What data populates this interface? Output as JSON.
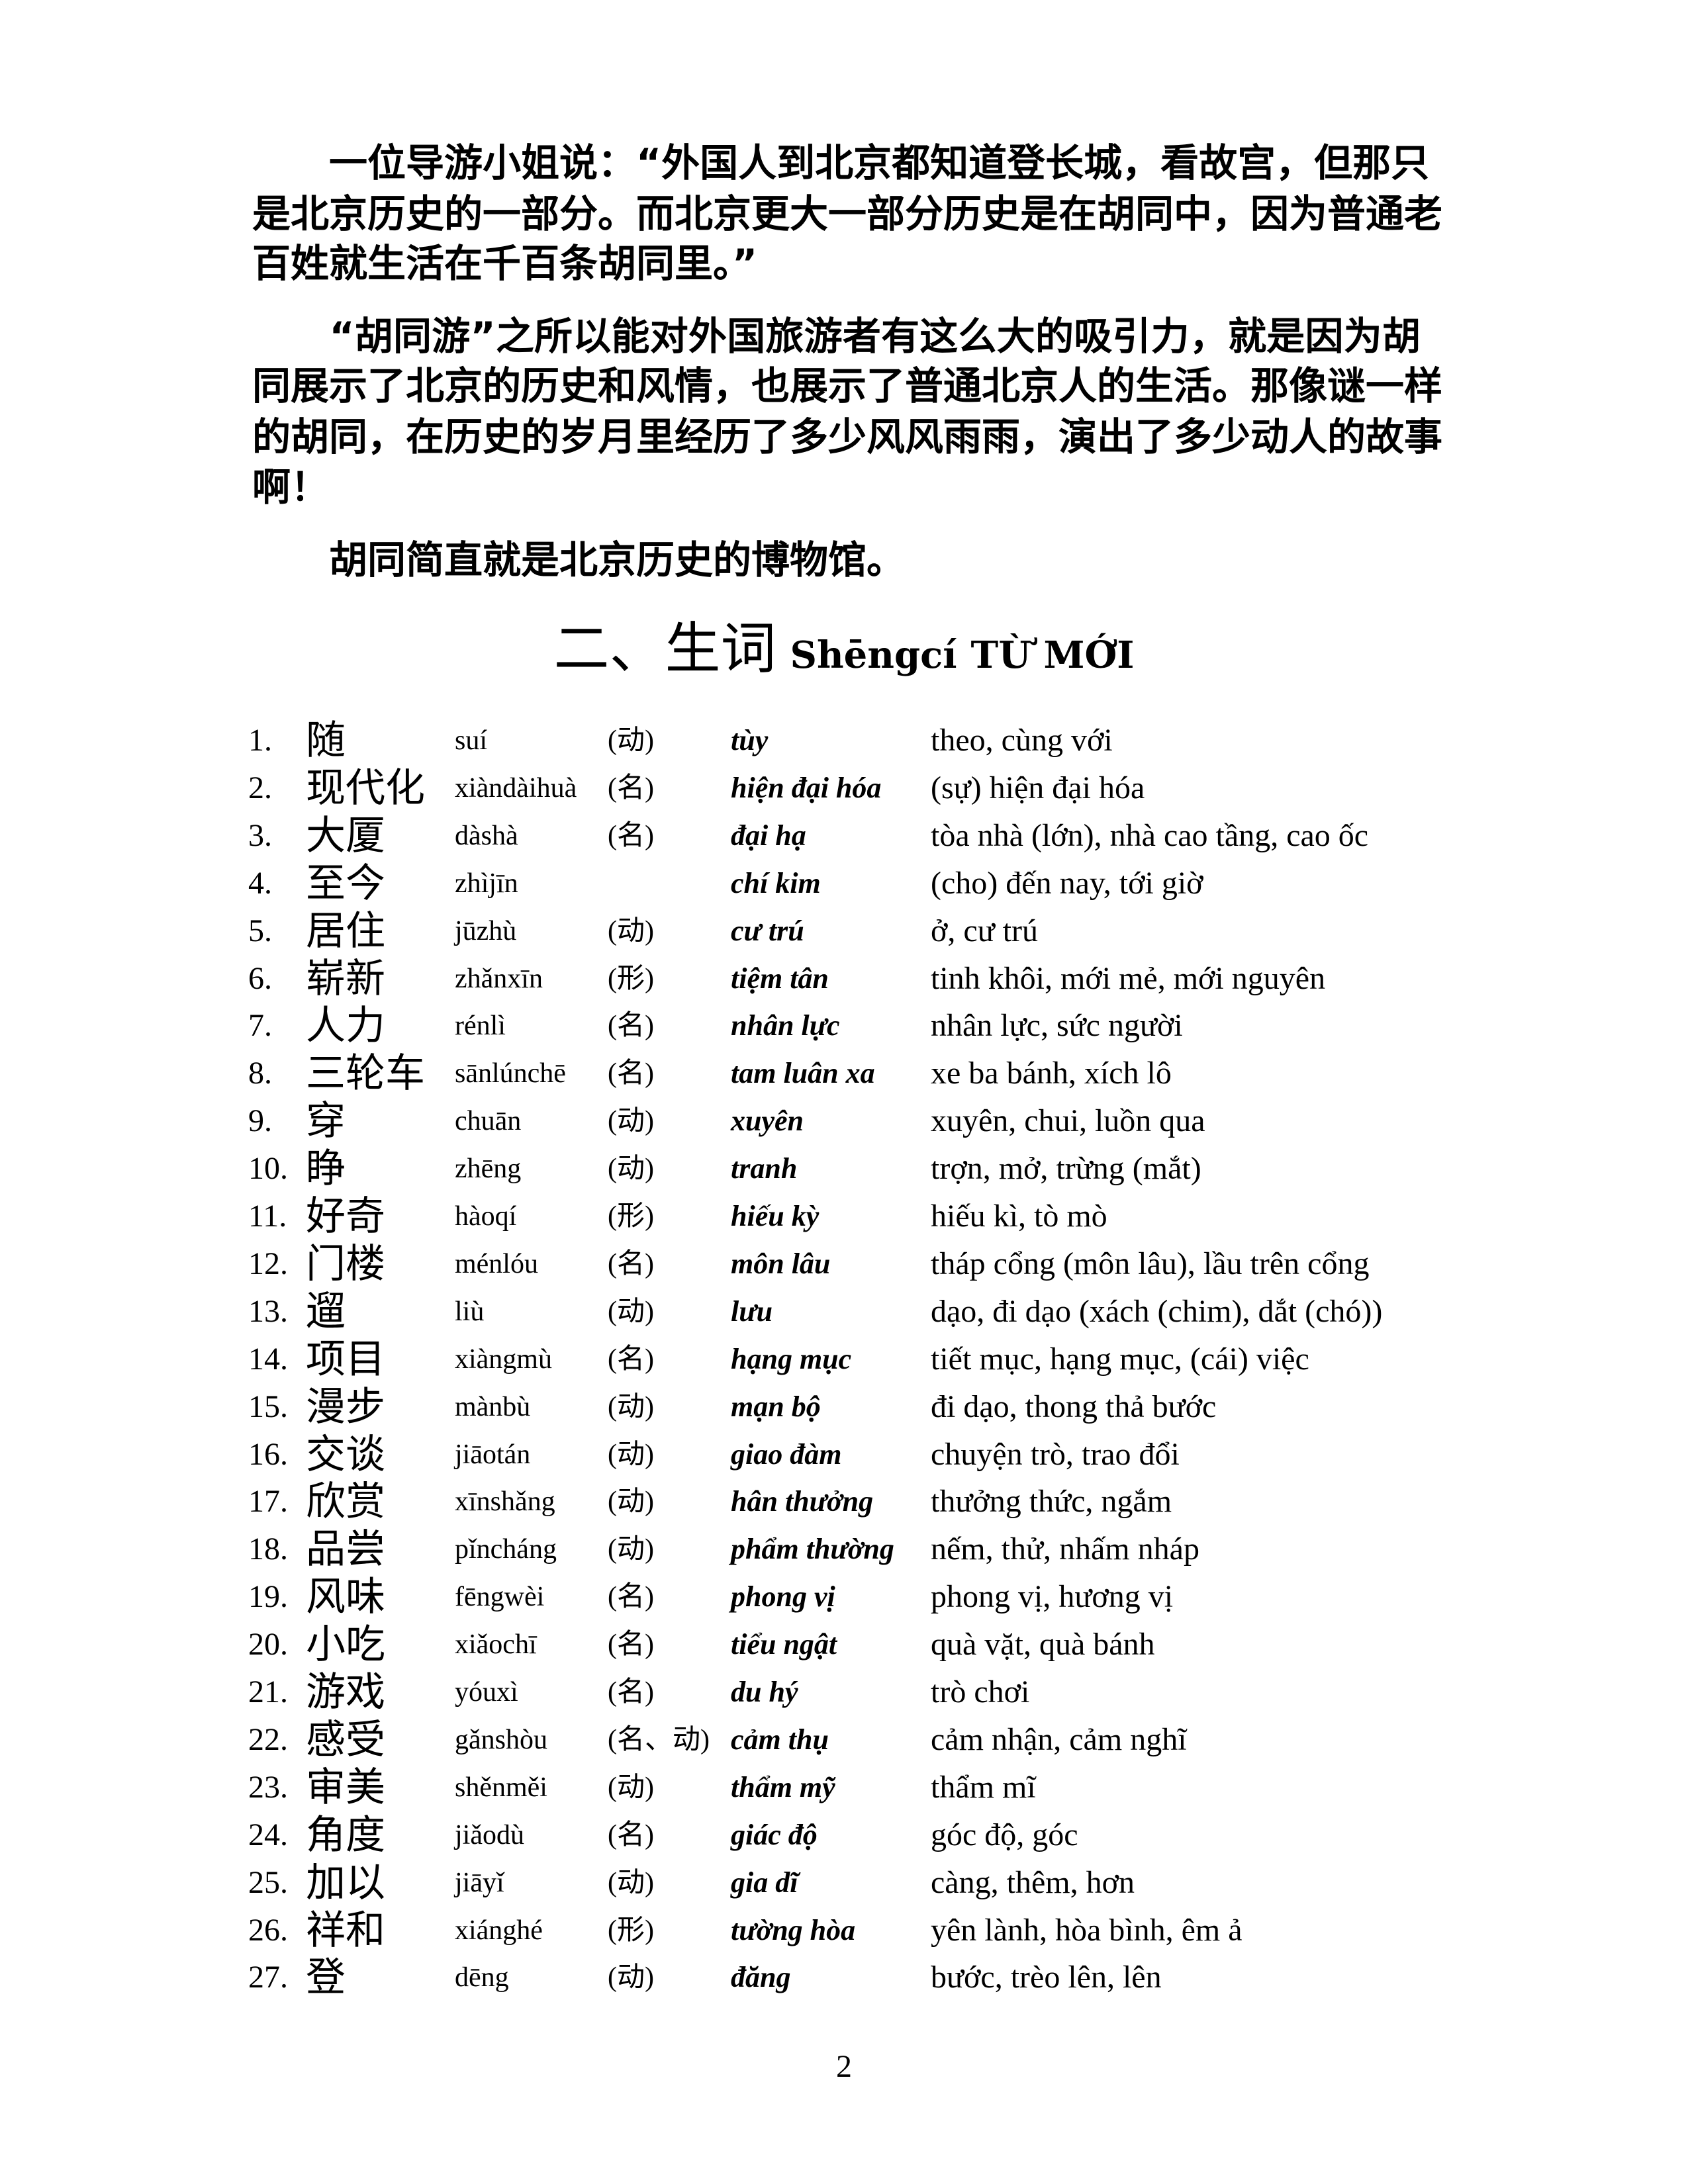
{
  "paragraphs": [
    [
      "　　一位导游小姐说：“外国人到北京都知道登长城，看故宫，但那只",
      "是北京历史的一部分。而北京更大一部分历史是在胡同中，因为普通老",
      "百姓就生活在千百条胡同里。”"
    ],
    [
      "　　“胡同游”之所以能对外国旅游者有这么大的吸引力，就是因为胡",
      "同展示了北京的历史和风情，也展示了普通北京人的生活。那像谜一样",
      "的胡同，在历史的岁月里经历了多少风风雨雨，演出了多少动人的故事",
      "啊！"
    ],
    [
      "　　胡同简直就是北京历史的博物馆。"
    ]
  ],
  "section_title": {
    "cn": "二、生词",
    "pinyin": "Shēngcí",
    "vn": "TỪ MỚI"
  },
  "vocab": [
    {
      "n": "1.",
      "hz": "随",
      "py": "suí",
      "pos": "(动)",
      "vn": "tùy",
      "mean": "theo, cùng với"
    },
    {
      "n": "2.",
      "hz": "现代化",
      "py": "xiàndàihuà",
      "pos": "(名)",
      "vn": "hiện đại hóa",
      "mean": "(sự) hiện đại hóa"
    },
    {
      "n": "3.",
      "hz": "大厦",
      "py": "dàshà",
      "pos": "(名)",
      "vn": "đại hạ",
      "mean": "tòa nhà (lớn), nhà cao tầng, cao ốc"
    },
    {
      "n": "4.",
      "hz": "至今",
      "py": "zhìjīn",
      "pos": "",
      "vn": "chí kim",
      "mean": "(cho) đến nay, tới giờ"
    },
    {
      "n": "5.",
      "hz": "居住",
      "py": "jūzhù",
      "pos": "(动)",
      "vn": "cư trú",
      "mean": "ở, cư trú"
    },
    {
      "n": "6.",
      "hz": "崭新",
      "py": "zhǎnxīn",
      "pos": "(形)",
      "vn": "tiệm tân",
      "mean": "tinh khôi, mới mẻ, mới nguyên"
    },
    {
      "n": "7.",
      "hz": "人力",
      "py": "rénlì",
      "pos": "(名)",
      "vn": "nhân lực",
      "mean": "nhân lực, sức người"
    },
    {
      "n": "8.",
      "hz": "三轮车",
      "py": "sānlúnchē",
      "pos": "(名)",
      "vn": "tam luân xa",
      "mean": "xe ba bánh, xích lô"
    },
    {
      "n": "9.",
      "hz": "穿",
      "py": "chuān",
      "pos": "(动)",
      "vn": "xuyên",
      "mean": "xuyên, chui, luồn qua"
    },
    {
      "n": "10.",
      "hz": "睁",
      "py": "zhēng",
      "pos": "(动)",
      "vn": "tranh",
      "mean": "trợn, mở, trừng (mắt)"
    },
    {
      "n": "11.",
      "hz": "好奇",
      "py": "hàoqí",
      "pos": "(形)",
      "vn": "hiếu kỳ",
      "mean": "hiếu kì, tò mò"
    },
    {
      "n": "12.",
      "hz": "门楼",
      "py": "ménlóu",
      "pos": "(名)",
      "vn": "môn lâu",
      "mean": "tháp cổng (môn lâu), lầu trên cổng"
    },
    {
      "n": "13.",
      "hz": "遛",
      "py": "liù",
      "pos": "(动)",
      "vn": "lưu",
      "mean": "dạo, đi dạo (xách (chim), dắt (chó))"
    },
    {
      "n": "14.",
      "hz": "项目",
      "py": "xiàngmù",
      "pos": "(名)",
      "vn": "hạng mục",
      "mean": "tiết mục, hạng mục, (cái) việc"
    },
    {
      "n": "15.",
      "hz": "漫步",
      "py": "mànbù",
      "pos": "(动)",
      "vn": "mạn bộ",
      "mean": "đi dạo, thong thả bước"
    },
    {
      "n": "16.",
      "hz": "交谈",
      "py": "jiāotán",
      "pos": "(动)",
      "vn": "giao đàm",
      "mean": "chuyện trò, trao đổi"
    },
    {
      "n": "17.",
      "hz": "欣赏",
      "py": "xīnshǎng",
      "pos": "(动)",
      "vn": "hân thưởng",
      "mean": "thưởng thức, ngắm"
    },
    {
      "n": "18.",
      "hz": "品尝",
      "py": "pǐncháng",
      "pos": "(动)",
      "vn": "phẩm thường",
      "mean": "nếm, thử, nhấm nháp"
    },
    {
      "n": "19.",
      "hz": "风味",
      "py": "fēngwèi",
      "pos": "(名)",
      "vn": "phong vị",
      "mean": "phong vị, hương vị"
    },
    {
      "n": "20.",
      "hz": "小吃",
      "py": "xiǎochī",
      "pos": "(名)",
      "vn": "tiểu ngật",
      "mean": "quà vặt, quà bánh"
    },
    {
      "n": "21.",
      "hz": "游戏",
      "py": "yóuxì",
      "pos": "(名)",
      "vn": "du hý",
      "mean": "trò chơi"
    },
    {
      "n": "22.",
      "hz": "感受",
      "py": "gǎnshòu",
      "pos": "(名、动)",
      "vn": "cảm thụ",
      "mean": "cảm nhận, cảm nghĩ"
    },
    {
      "n": "23.",
      "hz": "审美",
      "py": "shěnměi",
      "pos": "(动)",
      "vn": "thẩm mỹ",
      "mean": "thẩm mĩ"
    },
    {
      "n": "24.",
      "hz": "角度",
      "py": "jiǎodù",
      "pos": "(名)",
      "vn": "giác độ",
      "mean": "góc độ, góc"
    },
    {
      "n": "25.",
      "hz": "加以",
      "py": "jiāyǐ",
      "pos": "(动)",
      "vn": "gia dĩ",
      "mean": "càng, thêm, hơn"
    },
    {
      "n": "26.",
      "hz": "祥和",
      "py": "xiánghé",
      "pos": "(形)",
      "vn": "tường hòa",
      "mean": "yên lành, hòa bình, êm ả"
    },
    {
      "n": "27.",
      "hz": "登",
      "py": "dēng",
      "pos": "(动)",
      "vn": "đăng",
      "mean": "bước, trèo lên, lên"
    }
  ],
  "page_number": "2"
}
